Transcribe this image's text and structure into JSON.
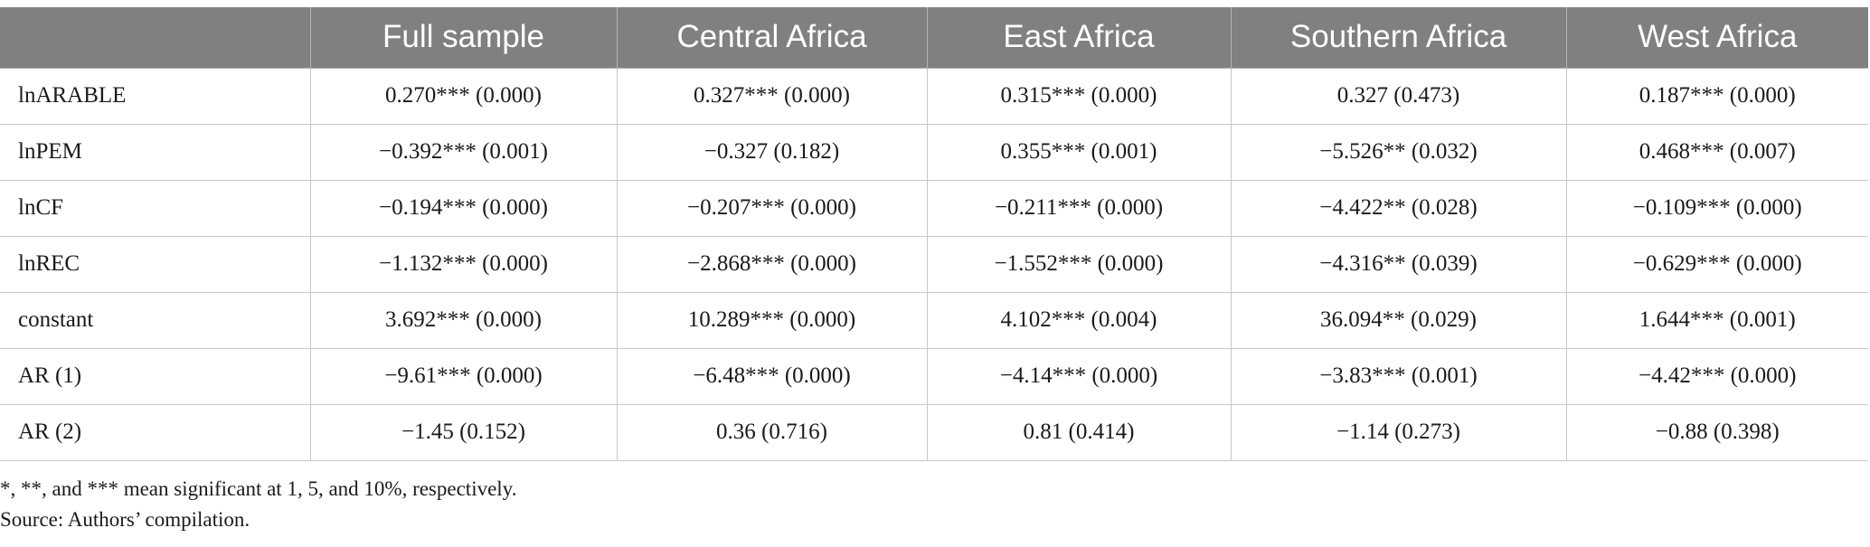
{
  "table": {
    "columns": [
      "",
      "Full sample",
      "Central Africa",
      "East Africa",
      "Southern Africa",
      "West Africa"
    ],
    "rows": [
      [
        "lnARABLE",
        "0.270*** (0.000)",
        "0.327*** (0.000)",
        "0.315*** (0.000)",
        "0.327 (0.473)",
        "0.187*** (0.000)"
      ],
      [
        "lnPEM",
        "−0.392*** (0.001)",
        "−0.327 (0.182)",
        "0.355*** (0.001)",
        "−5.526** (0.032)",
        "0.468*** (0.007)"
      ],
      [
        "lnCF",
        "−0.194*** (0.000)",
        "−0.207*** (0.000)",
        "−0.211*** (0.000)",
        "−4.422** (0.028)",
        "−0.109*** (0.000)"
      ],
      [
        "lnREC",
        "−1.132*** (0.000)",
        "−2.868*** (0.000)",
        "−1.552*** (0.000)",
        "−4.316** (0.039)",
        "−0.629*** (0.000)"
      ],
      [
        "constant",
        "3.692*** (0.000)",
        "10.289*** (0.000)",
        "4.102*** (0.004)",
        "36.094** (0.029)",
        "1.644*** (0.001)"
      ],
      [
        "AR (1)",
        "−9.61*** (0.000)",
        "−6.48*** (0.000)",
        "−4.14*** (0.000)",
        "−3.83*** (0.001)",
        "−4.42*** (0.000)"
      ],
      [
        "AR (2)",
        "−1.45 (0.152)",
        "0.36 (0.716)",
        "0.81 (0.414)",
        "−1.14 (0.273)",
        "−0.88 (0.398)"
      ]
    ]
  },
  "notes": {
    "significance": "*, **, and *** mean significant at 1, 5, and 10%, respectively.",
    "source": "Source: Authors’ compilation."
  }
}
